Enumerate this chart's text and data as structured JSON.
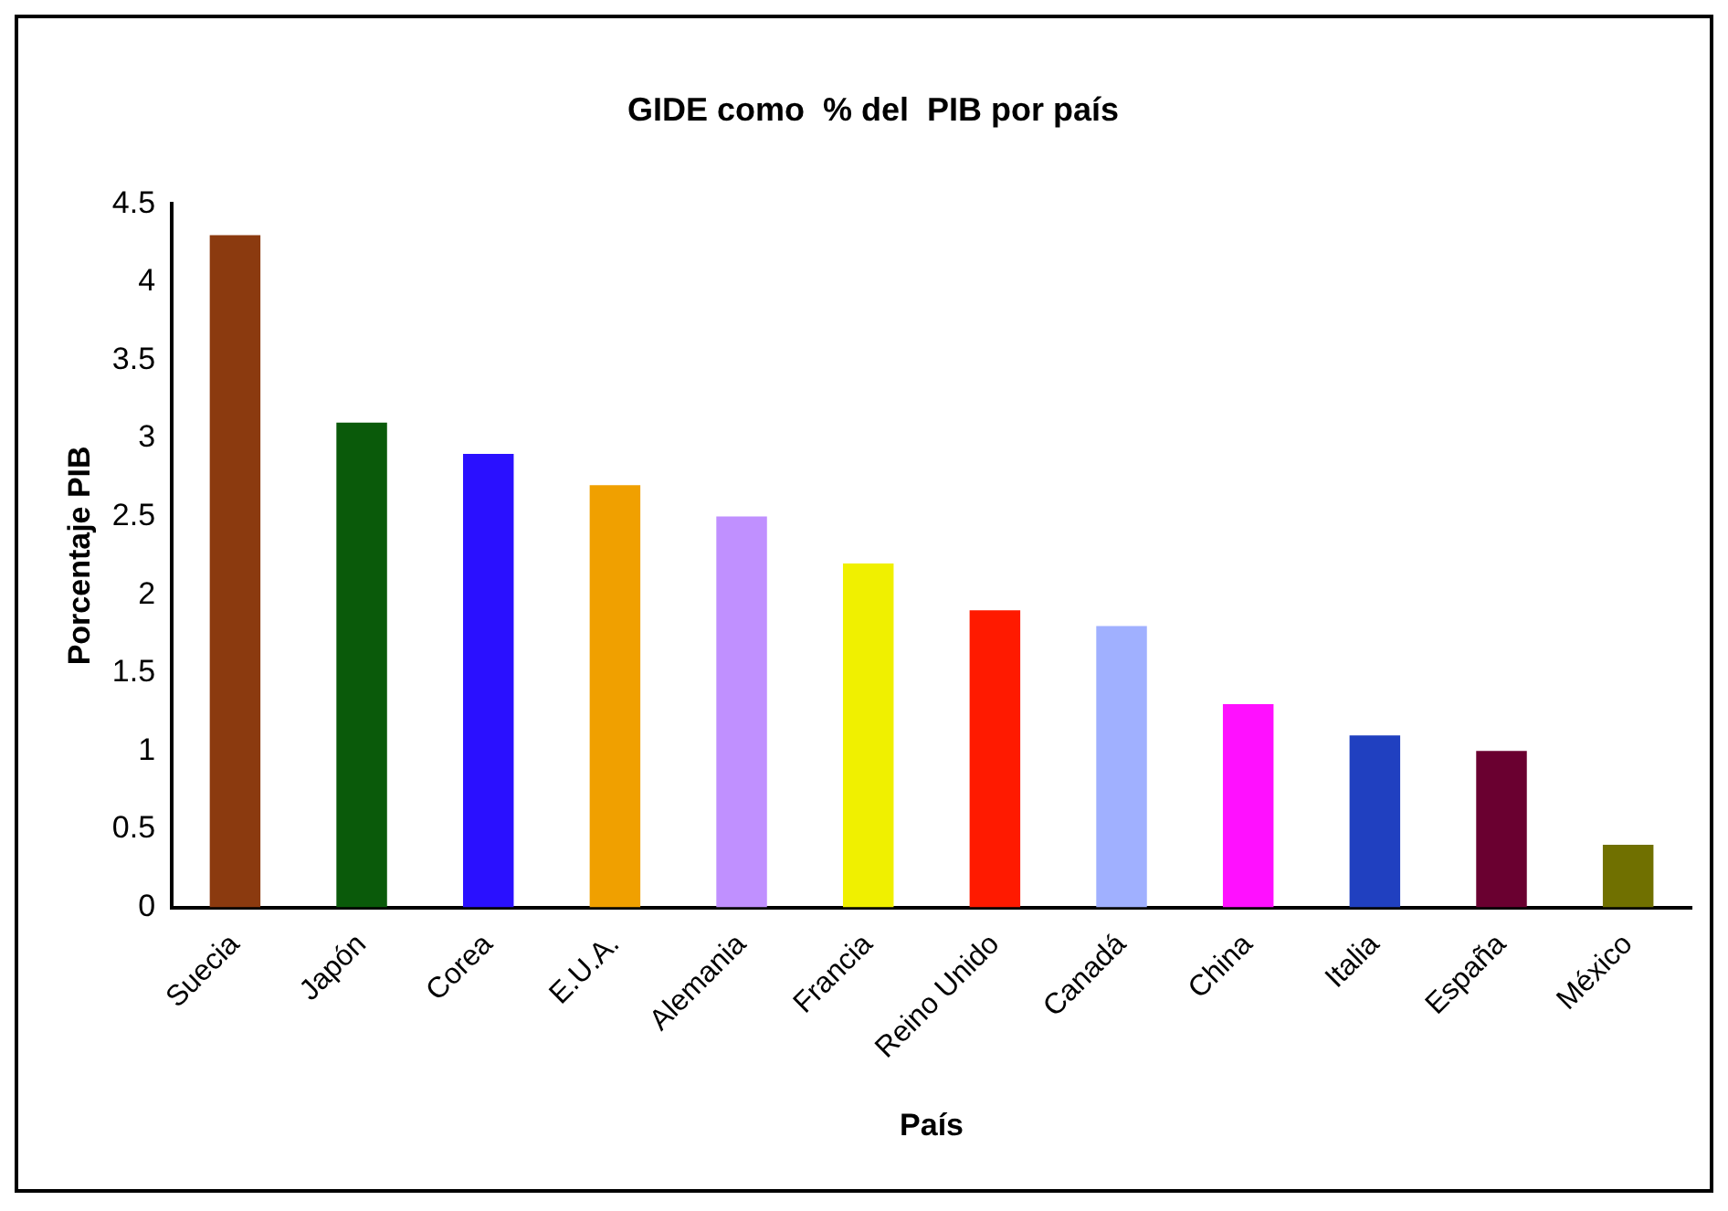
{
  "chart_data": {
    "type": "bar",
    "title": "GIDE como  % del  PIB por país",
    "xlabel": "País",
    "ylabel": "Porcentaje PIB",
    "categories": [
      "Suecia",
      "Japón",
      "Corea",
      "E.U.A.",
      "Alemania",
      "Francia",
      "Reino Unido",
      "Canadá",
      "China",
      "Italia",
      "España",
      "México"
    ],
    "values": [
      4.3,
      3.1,
      2.9,
      2.7,
      2.5,
      2.2,
      1.9,
      1.8,
      1.3,
      1.1,
      1.0,
      0.4
    ],
    "colors": [
      "#8b3a0f",
      "#0a5a0a",
      "#2a10ff",
      "#f0a000",
      "#c090ff",
      "#f0f000",
      "#ff1a00",
      "#a0b0ff",
      "#ff10ff",
      "#2040c0",
      "#6a0030",
      "#707000"
    ],
    "ylim": [
      0,
      4.5
    ],
    "yticks": [
      0,
      0.5,
      1,
      1.5,
      2,
      2.5,
      3,
      3.5,
      4,
      4.5
    ],
    "grid": false,
    "legend": false
  }
}
